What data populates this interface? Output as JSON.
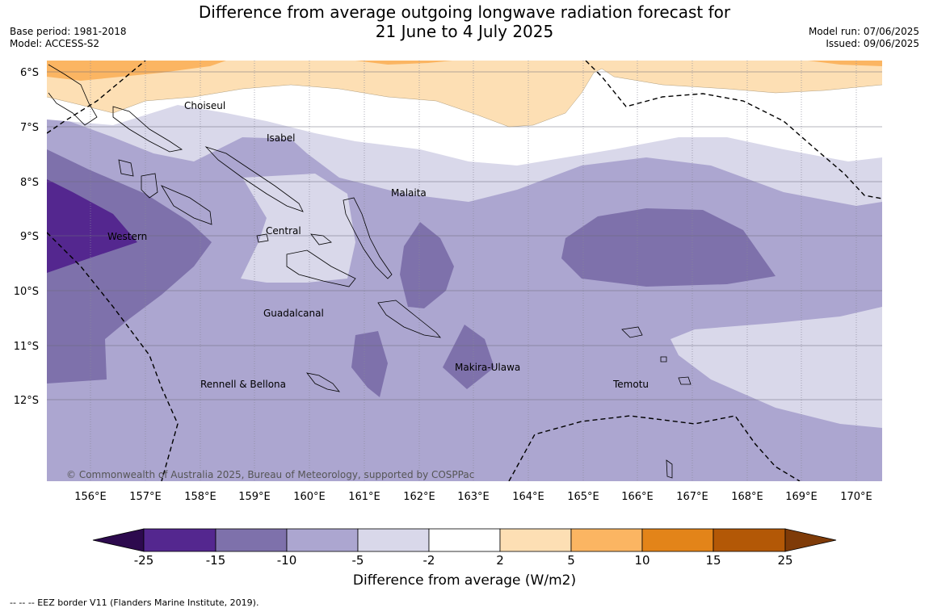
{
  "header": {
    "title_line1": "Difference from average outgoing longwave radiation forecast for",
    "title_line2": "21 June to 4 July 2025",
    "base_period": "Base period: 1981-2018",
    "model": "Model: ACCESS-S2",
    "model_run": "Model run: 07/06/2025",
    "issued": "Issued: 09/06/2025"
  },
  "map": {
    "lon_labels": [
      "156°E",
      "157°E",
      "158°E",
      "159°E",
      "160°E",
      "161°E",
      "162°E",
      "163°E",
      "164°E",
      "165°E",
      "166°E",
      "167°E",
      "168°E",
      "169°E",
      "170°E"
    ],
    "lat_labels": [
      "6°S",
      "7°S",
      "8°S",
      "9°S",
      "10°S",
      "11°S",
      "12°S"
    ],
    "provinces": [
      "Choiseul",
      "Isabel",
      "Malaita",
      "Western",
      "Central",
      "Guadalcanal",
      "Makira-Ulawa",
      "Rennell & Bellona",
      "Temotu"
    ],
    "copyright": "© Commonwealth of Australia 2025, Bureau of Meteorology, supported by COSPPac"
  },
  "colorbar": {
    "ticks": [
      "-25",
      "-15",
      "-10",
      "-5",
      "-2",
      "2",
      "5",
      "10",
      "15",
      "25"
    ],
    "colors": [
      "#2d0a4e",
      "#54278f",
      "#7e71ab",
      "#aca6d0",
      "#d9d8ea",
      "#ffffff",
      "#fddfb4",
      "#fbb562",
      "#e38419",
      "#b35806",
      "#7f3b08"
    ],
    "label": "Difference from average (W/m2)"
  },
  "footnote": "--  --  -- EEZ border V11 (Flanders Marine Institute, 2019)."
}
